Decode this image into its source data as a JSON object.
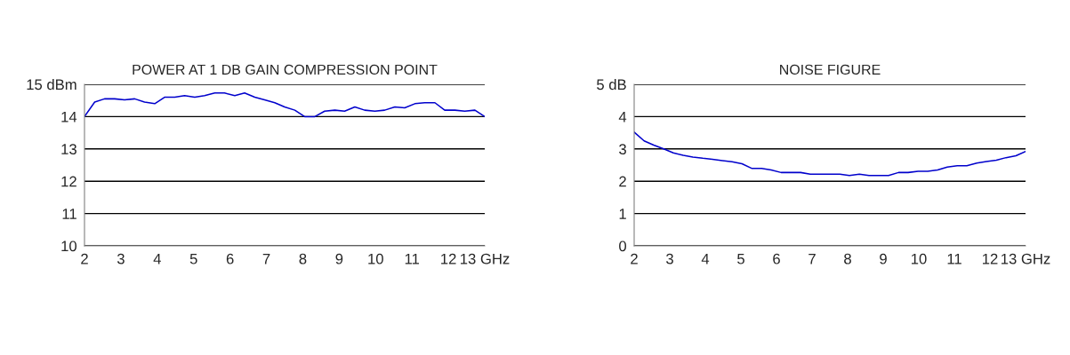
{
  "chart_data": [
    {
      "type": "line",
      "title": "POWER AT 1 DB GAIN COMPRESSION POINT",
      "x": [
        2,
        2.28,
        2.55,
        2.83,
        3.1,
        3.38,
        3.65,
        3.93,
        4.2,
        4.48,
        4.75,
        5.03,
        5.3,
        5.58,
        5.85,
        6.13,
        6.4,
        6.68,
        6.95,
        7.23,
        7.5,
        7.78,
        8.05,
        8.33,
        8.6,
        8.88,
        9.15,
        9.43,
        9.7,
        9.98,
        10.25,
        10.53,
        10.8,
        11.08,
        11.35,
        11.63,
        11.9,
        12.18,
        12.45,
        12.73,
        13
      ],
      "series": [
        {
          "color": "#0000cc",
          "values": [
            14.0,
            14.45,
            14.55,
            14.55,
            14.52,
            14.55,
            14.45,
            14.4,
            14.6,
            14.6,
            14.65,
            14.6,
            14.65,
            14.73,
            14.73,
            14.65,
            14.73,
            14.6,
            14.52,
            14.43,
            14.3,
            14.2,
            14.0,
            14.0,
            14.17,
            14.2,
            14.17,
            14.3,
            14.2,
            14.17,
            14.2,
            14.3,
            14.27,
            14.4,
            14.43,
            14.43,
            14.2,
            14.2,
            14.17,
            14.2,
            14.0
          ]
        }
      ],
      "xlim": [
        2,
        13
      ],
      "xticks": [
        2,
        3,
        4,
        5,
        6,
        7,
        8,
        9,
        10,
        11,
        12,
        {
          "value": 13,
          "label": "13 GHz"
        }
      ],
      "ylim": [
        10,
        15
      ],
      "yticks": [
        10,
        11,
        12,
        13,
        14,
        {
          "value": 15,
          "label": "15 dBm"
        }
      ],
      "grid": "y",
      "marker": "none",
      "line_style": "solid"
    },
    {
      "type": "line",
      "title": "NOISE FIGURE",
      "x": [
        2,
        2.28,
        2.55,
        2.83,
        3.1,
        3.38,
        3.65,
        3.93,
        4.2,
        4.48,
        4.75,
        5.03,
        5.3,
        5.58,
        5.85,
        6.13,
        6.4,
        6.68,
        6.95,
        7.23,
        7.5,
        7.78,
        8.05,
        8.33,
        8.6,
        8.88,
        9.15,
        9.43,
        9.7,
        9.98,
        10.25,
        10.53,
        10.8,
        11.08,
        11.35,
        11.63,
        11.9,
        12.18,
        12.45,
        12.73,
        13
      ],
      "series": [
        {
          "color": "#0000cc",
          "values": [
            3.52,
            3.25,
            3.12,
            3.0,
            2.88,
            2.8,
            2.75,
            2.71,
            2.68,
            2.64,
            2.6,
            2.54,
            2.4,
            2.4,
            2.35,
            2.27,
            2.27,
            2.27,
            2.22,
            2.22,
            2.22,
            2.22,
            2.18,
            2.22,
            2.18,
            2.18,
            2.18,
            2.27,
            2.27,
            2.31,
            2.31,
            2.35,
            2.44,
            2.48,
            2.48,
            2.56,
            2.61,
            2.65,
            2.73,
            2.79,
            2.92
          ]
        }
      ],
      "xlim": [
        2,
        13
      ],
      "xticks": [
        2,
        3,
        4,
        5,
        6,
        7,
        8,
        9,
        10,
        11,
        12,
        {
          "value": 13,
          "label": "13 GHz"
        }
      ],
      "ylim": [
        0,
        5
      ],
      "yticks": [
        0,
        1,
        2,
        3,
        4,
        {
          "value": 5,
          "label": "5 dB"
        }
      ],
      "grid": "y",
      "marker": "none",
      "line_style": "solid"
    }
  ]
}
